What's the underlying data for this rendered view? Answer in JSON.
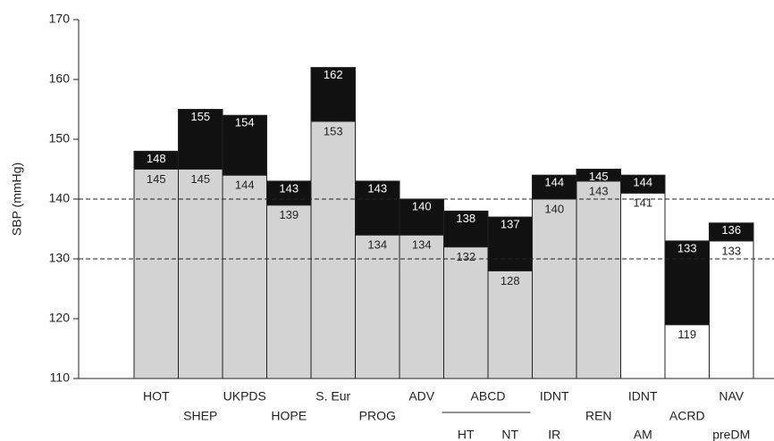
{
  "chart_data": {
    "type": "range-bar",
    "y_label": "SBP (mmHg)",
    "categories": [
      "HOT",
      "SHEP",
      "UKPDS",
      "HOPE",
      "S. Eur",
      "PROG",
      "ADV",
      "HT",
      "NT",
      "IR",
      "REN",
      "AM",
      "ACRD",
      "preDM"
    ],
    "group_labels": [
      {
        "label": "ABCD",
        "from": 7,
        "to": 8
      },
      {
        "label": "IDNT",
        "from": 9,
        "to": 9
      },
      {
        "label": "IDNT",
        "from": 11,
        "to": 11
      },
      {
        "label": "NAV",
        "from": 13,
        "to": 13
      }
    ],
    "series": [
      {
        "values": [
          145,
          145,
          144,
          139,
          153,
          134,
          134,
          132,
          128,
          140,
          143,
          141,
          119,
          133
        ],
        "colors": [
          "#d3d3d3",
          "#d3d3d3",
          "#d3d3d3",
          "#d3d3d3",
          "#d3d3d3",
          "#d3d3d3",
          "#d3d3d3",
          "#d3d3d3",
          "#d3d3d3",
          "#d3d3d3",
          "#d3d3d3",
          "#ffffff",
          "#ffffff",
          "#ffffff"
        ]
      },
      {
        "values": [
          148,
          155,
          154,
          143,
          162,
          143,
          140,
          138,
          137,
          144,
          145,
          144,
          133,
          136
        ],
        "color": "#111111"
      }
    ],
    "ref_lines": [
      130,
      140
    ],
    "ylim": [
      110,
      170
    ],
    "yticks": [
      110,
      120,
      130,
      140,
      150,
      160,
      170
    ]
  }
}
